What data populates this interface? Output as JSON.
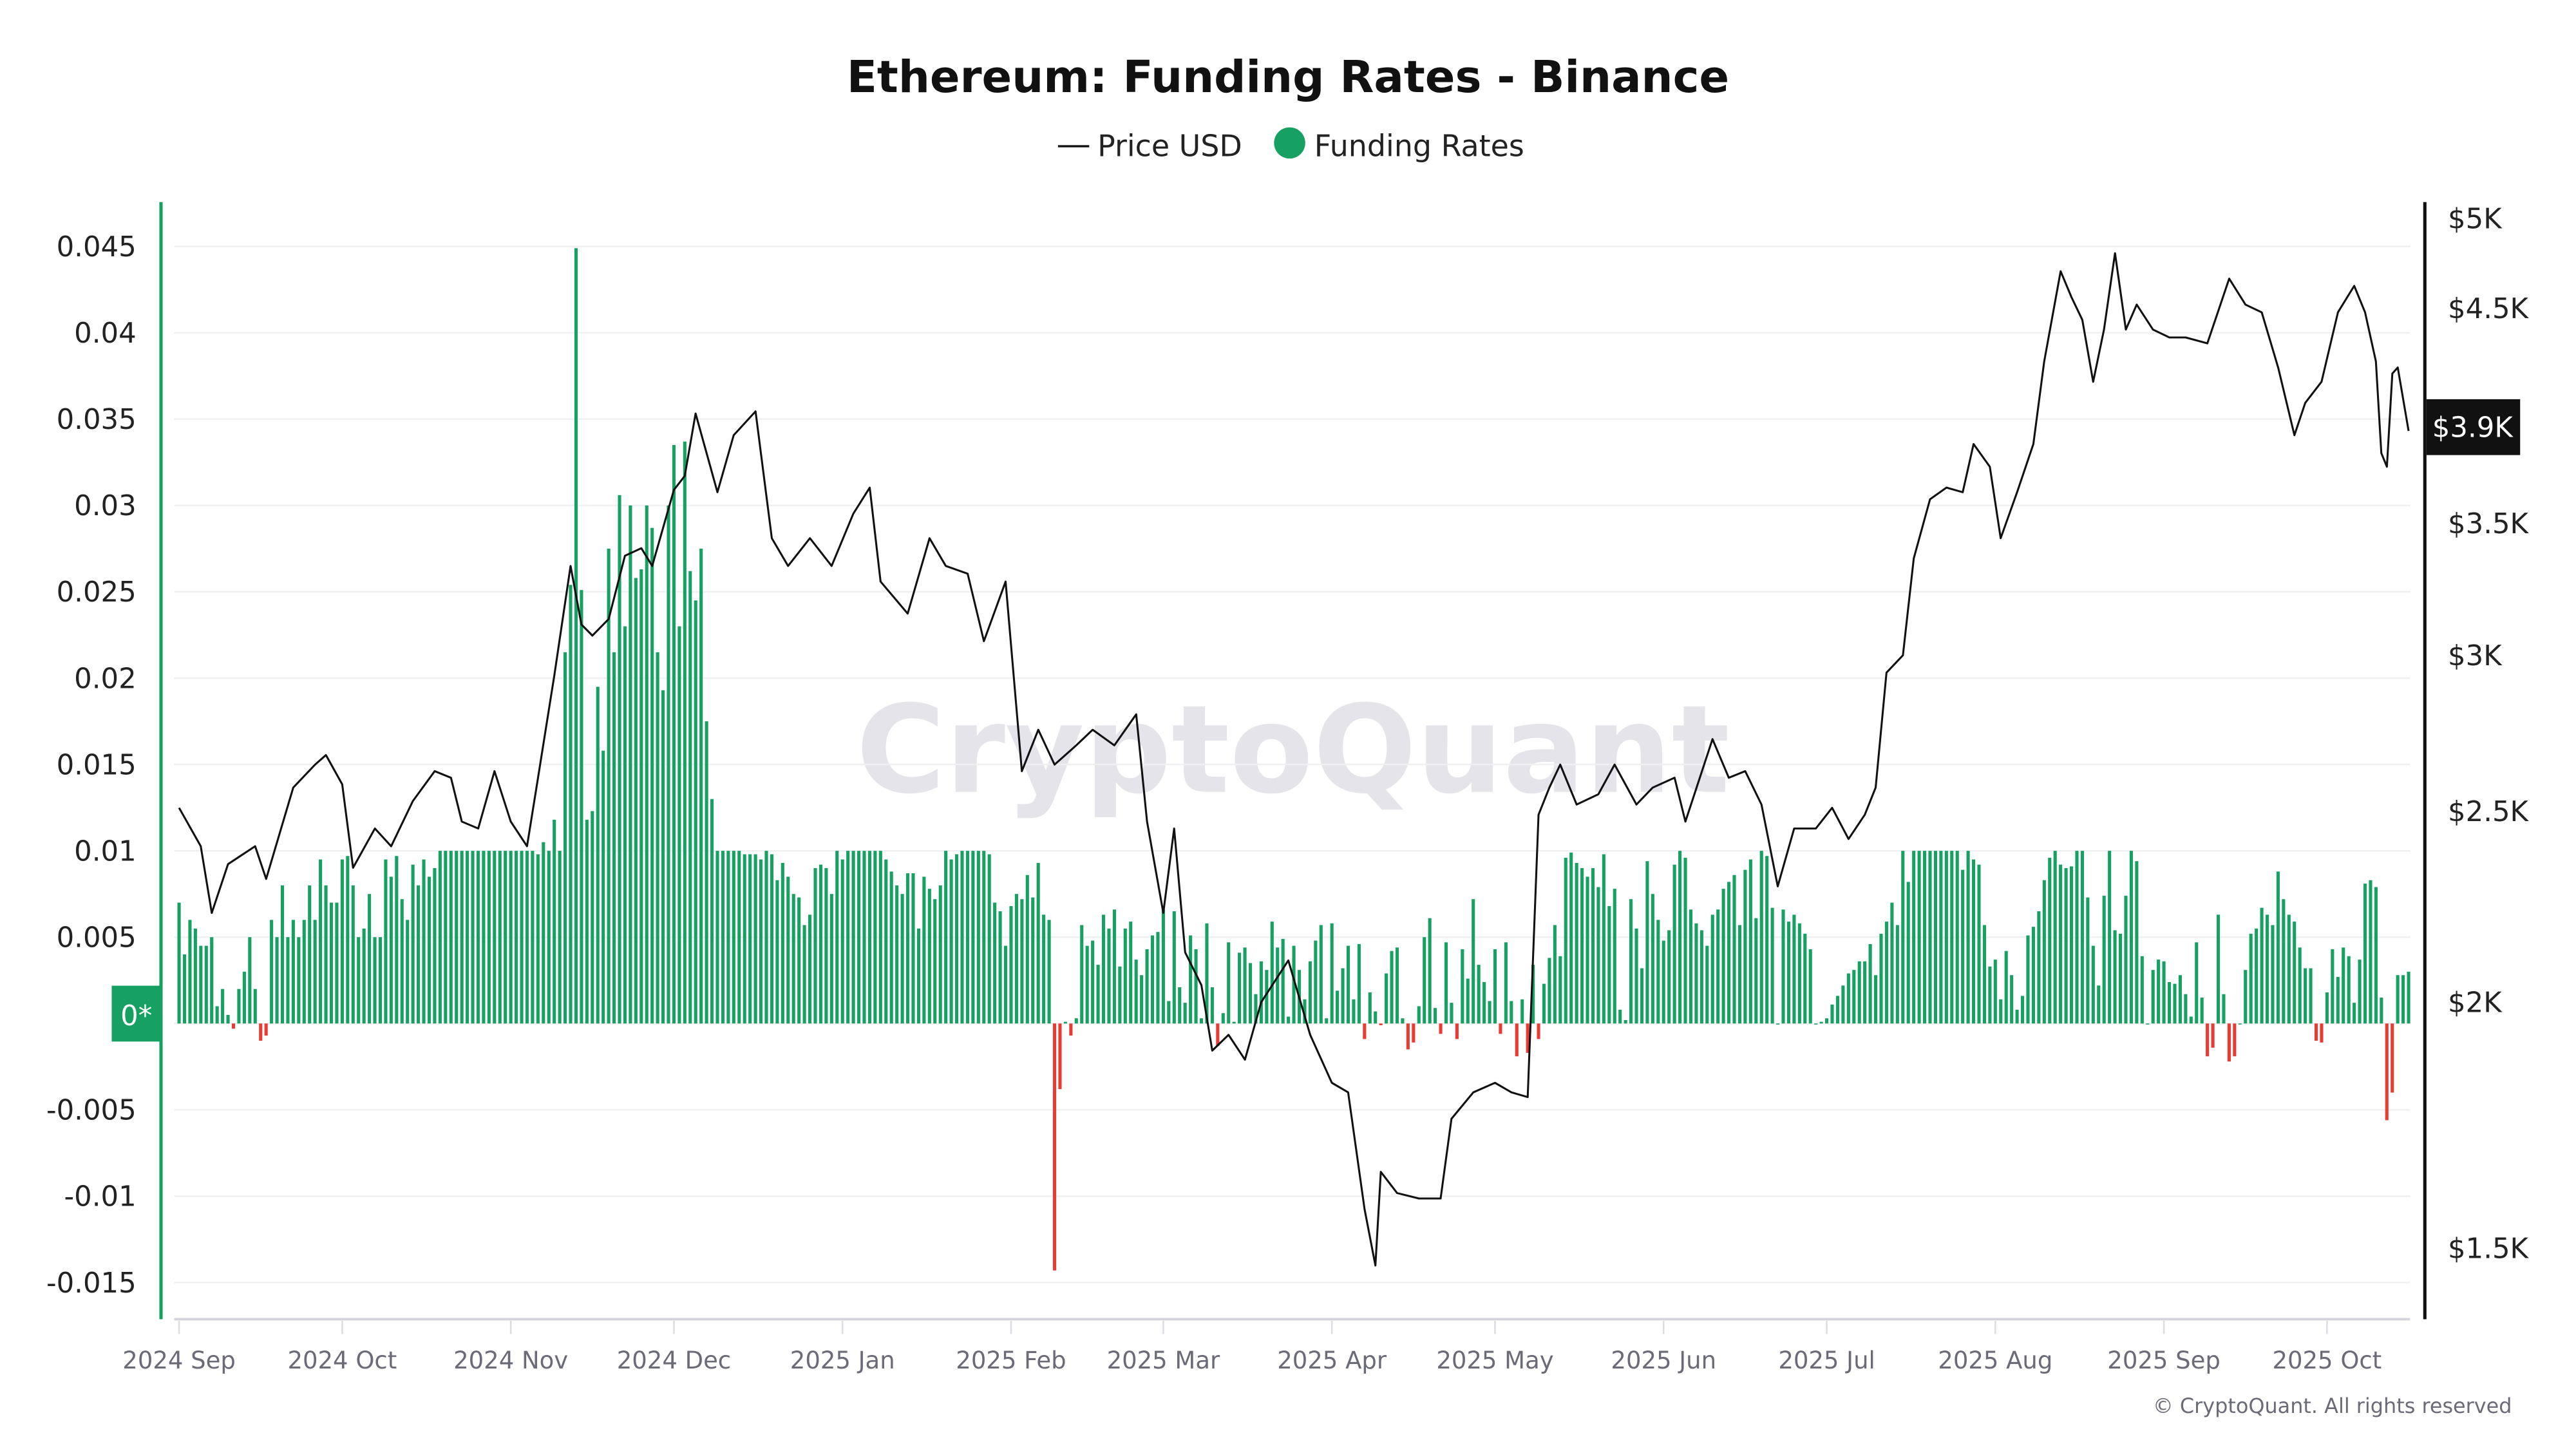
{
  "chart_data": {
    "type": "bar+line",
    "title": "Ethereum: Funding Rates - Binance",
    "legend": {
      "position": "top-center",
      "items": [
        {
          "label": "Price USD",
          "marker": "line",
          "color": "#111111"
        },
        {
          "label": "Funding Rates",
          "marker": "dot",
          "color": "#16a061"
        }
      ]
    },
    "watermark": "CryptoQuant",
    "copyright": "© CryptoQuant. All rights reserved",
    "colors": {
      "positive": "#16a061",
      "negative": "#ea3b32",
      "price": "#111111",
      "left_axis": "#16a061",
      "right_axis": "#111111"
    },
    "grid": true,
    "x_axis": {
      "ticks": [
        {
          "date": "2024-09-01",
          "label": "2024 Sep"
        },
        {
          "date": "2024-10-01",
          "label": "2024 Oct"
        },
        {
          "date": "2024-11-01",
          "label": "2024 Nov"
        },
        {
          "date": "2024-12-01",
          "label": "2024 Dec"
        },
        {
          "date": "2025-01-01",
          "label": "2025 Jan"
        },
        {
          "date": "2025-02-01",
          "label": "2025 Feb"
        },
        {
          "date": "2025-03-01",
          "label": "2025 Mar"
        },
        {
          "date": "2025-04-01",
          "label": "2025 Apr"
        },
        {
          "date": "2025-05-01",
          "label": "2025 May"
        },
        {
          "date": "2025-06-01",
          "label": "2025 Jun"
        },
        {
          "date": "2025-07-01",
          "label": "2025 Jul"
        },
        {
          "date": "2025-08-01",
          "label": "2025 Aug"
        },
        {
          "date": "2025-09-01",
          "label": "2025 Sep"
        },
        {
          "date": "2025-10-01",
          "label": "2025 Oct"
        }
      ]
    },
    "y_left": {
      "range": [
        -0.017,
        0.048
      ],
      "ticks": [
        {
          "value": 0.045,
          "label": "0.045"
        },
        {
          "value": 0.04,
          "label": "0.04"
        },
        {
          "value": 0.035,
          "label": "0.035"
        },
        {
          "value": 0.03,
          "label": "0.03"
        },
        {
          "value": 0.025,
          "label": "0.025"
        },
        {
          "value": 0.02,
          "label": "0.02"
        },
        {
          "value": 0.015,
          "label": "0.015"
        },
        {
          "value": 0.01,
          "label": "0.01"
        },
        {
          "value": 0.005,
          "label": "0.005"
        },
        {
          "value": -0.005,
          "label": "-0.005"
        },
        {
          "value": -0.01,
          "label": "-0.01"
        },
        {
          "value": -0.015,
          "label": "-0.015"
        }
      ],
      "zero_badge": "0*"
    },
    "y_right": {
      "scale": "log",
      "range": [
        1350,
        5200
      ],
      "ticks": [
        {
          "value": 5000,
          "label": "$5K"
        },
        {
          "value": 4500,
          "label": "$4.5K"
        },
        {
          "value": 3500,
          "label": "$3.5K"
        },
        {
          "value": 3000,
          "label": "$3K"
        },
        {
          "value": 2500,
          "label": "$2.5K"
        },
        {
          "value": 2000,
          "label": "$2K"
        },
        {
          "value": 1500,
          "label": "$1.5K"
        }
      ],
      "current_badge": {
        "value": 3900,
        "label": "$3.9K"
      }
    },
    "funding_rates": {
      "start": "2024-09-01",
      "daily": [
        0.007,
        0.004,
        0.006,
        0.0055,
        0.0045,
        0.0045,
        0.005,
        0.001,
        0.002,
        0.0005,
        -0.0003,
        0.002,
        0.003,
        0.005,
        0.002,
        -0.001,
        -0.0007,
        0.006,
        0.005,
        0.008,
        0.005,
        0.006,
        0.005,
        0.006,
        0.008,
        0.006,
        0.0095,
        0.008,
        0.007,
        0.007,
        0.0095,
        0.0097,
        0.008,
        0.005,
        0.0055,
        0.0075,
        0.005,
        0.005,
        0.0095,
        0.0085,
        0.0097,
        0.0072,
        0.006,
        0.0092,
        0.008,
        0.0095,
        0.0085,
        0.009,
        0.01,
        0.01,
        0.01,
        0.01,
        0.01,
        0.01,
        0.01,
        0.01,
        0.01,
        0.01,
        0.01,
        0.01,
        0.01,
        0.01,
        0.01,
        0.01,
        0.01,
        0.01,
        0.0098,
        0.0105,
        0.01,
        0.0118,
        0.01,
        0.0215,
        0.0254,
        0.0449,
        0.0251,
        0.0118,
        0.0123,
        0.0195,
        0.0158,
        0.0275,
        0.0215,
        0.0306,
        0.023,
        0.03,
        0.0258,
        0.0263,
        0.03,
        0.0287,
        0.0215,
        0.0193,
        0.03,
        0.0335,
        0.023,
        0.0337,
        0.0262,
        0.0245,
        0.0275,
        0.0175,
        0.013,
        0.01,
        0.01,
        0.01,
        0.01,
        0.01,
        0.0098,
        0.0098,
        0.0098,
        0.0095,
        0.01,
        0.0098,
        0.0083,
        0.0093,
        0.0085,
        0.0075,
        0.0073,
        0.0057,
        0.0063,
        0.009,
        0.0092,
        0.009,
        0.0075,
        0.01,
        0.0095,
        0.01,
        0.01,
        0.01,
        0.01,
        0.01,
        0.01,
        0.01,
        0.0095,
        0.0088,
        0.008,
        0.0075,
        0.0087,
        0.0087,
        0.0055,
        0.0085,
        0.0078,
        0.0072,
        0.008,
        0.01,
        0.0095,
        0.0098,
        0.01,
        0.01,
        0.01,
        0.01,
        0.01,
        0.0098,
        0.007,
        0.0065,
        0.0045,
        0.0068,
        0.0075,
        0.0072,
        0.0086,
        0.0073,
        0.0093,
        0.0063,
        0.006,
        -0.0143,
        -0.0038,
        0.0001,
        -0.0007,
        0.0003,
        0.0057,
        0.0045,
        0.0048,
        0.0034,
        0.0063,
        0.0055,
        0.0066,
        0.0033,
        0.0055,
        0.0059,
        0.0037,
        0.0028,
        0.0043,
        0.0051,
        0.0053,
        0.0066,
        0.0013,
        0.0065,
        0.0021,
        0.0012,
        0.0051,
        0.0043,
        0.0003,
        0.0058,
        0.0021,
        -0.0013,
        0.0006,
        0.0047,
        0.0001,
        0.0041,
        0.0044,
        0.0035,
        0.0017,
        0.0036,
        0.0031,
        0.0059,
        0.0044,
        0.0049,
        0.0004,
        0.0045,
        0.0031,
        0.0014,
        0.0036,
        0.0048,
        0.0057,
        0.0003,
        0.0058,
        0.0019,
        0.0032,
        0.0045,
        0.0014,
        0.0046,
        -0.0009,
        0.0018,
        0.0007,
        -0.0001,
        0.0029,
        0.0042,
        0.0044,
        0.0003,
        -0.0015,
        -0.0011,
        0.001,
        0.005,
        0.0061,
        0.0009,
        -0.0006,
        0.0047,
        0.0012,
        -0.0009,
        0.0043,
        0.0026,
        0.0072,
        0.0034,
        0.0024,
        0.0013,
        0.0043,
        -0.0006,
        0.0047,
        0.0013,
        -0.0019,
        0.0014,
        -0.0017,
        0.0034,
        -0.0009,
        0.0023,
        0.0038,
        0.0057,
        0.0039,
        0.0096,
        0.0099,
        0.0093,
        0.009,
        0.0085,
        0.009,
        0.0079,
        0.0098,
        0.0068,
        0.0078,
        0.0008,
        0.0002,
        0.0072,
        0.0055,
        0.0032,
        0.0094,
        0.0075,
        0.006,
        0.0048,
        0.0054,
        0.0092,
        0.01,
        0.0096,
        0.0066,
        0.0058,
        0.0054,
        0.0045,
        0.0063,
        0.0066,
        0.0078,
        0.0082,
        0.0086,
        0.0057,
        0.0089,
        0.0095,
        0.0061,
        0.01,
        0.0097,
        0.0067,
        0.0,
        0.0066,
        0.0059,
        0.0063,
        0.0058,
        0.0052,
        0.0043,
        0.0,
        0.0001,
        0.0003,
        0.0011,
        0.0016,
        0.0022,
        0.0029,
        0.0031,
        0.0036,
        0.0036,
        0.0046,
        0.0028,
        0.0052,
        0.0059,
        0.007,
        0.0057,
        0.01,
        0.0082,
        0.01,
        0.01,
        0.01,
        0.01,
        0.01,
        0.01,
        0.01,
        0.01,
        0.01,
        0.0089,
        0.01,
        0.0095,
        0.0092,
        0.0057,
        0.0033,
        0.0037,
        0.0014,
        0.0042,
        0.0028,
        0.0008,
        0.0016,
        0.0051,
        0.0056,
        0.0065,
        0.0083,
        0.0096,
        0.01,
        0.0092,
        0.009,
        0.0091,
        0.01,
        0.01,
        0.0073,
        0.0045,
        0.0022,
        0.0074,
        0.01,
        0.0054,
        0.0052,
        0.0074,
        0.01,
        0.0094,
        0.0039,
        0.0,
        0.0031,
        0.0037,
        0.0036,
        0.0024,
        0.0023,
        0.0028,
        0.0017,
        0.0004,
        0.0047,
        0.0015,
        -0.0019,
        -0.0014,
        0.0063,
        0.0017,
        -0.0022,
        -0.0019,
        0.0,
        0.0031,
        0.0052,
        0.0055,
        0.0067,
        0.0063,
        0.0057,
        0.0088,
        0.0072,
        0.0063,
        0.0059,
        0.0044,
        0.0032,
        0.0032,
        -0.001,
        -0.0011,
        0.0018,
        0.0043,
        0.0027,
        0.0044,
        0.0039,
        0.0012,
        0.0037,
        0.0081,
        0.0083,
        0.0079,
        0.0015,
        -0.0056,
        -0.004,
        0.0028,
        0.0028,
        0.003
      ]
    },
    "price_usd": [
      [
        "2024-09-01",
        2510
      ],
      [
        "2024-09-05",
        2400
      ],
      [
        "2024-09-07",
        2220
      ],
      [
        "2024-09-10",
        2350
      ],
      [
        "2024-09-15",
        2400
      ],
      [
        "2024-09-17",
        2310
      ],
      [
        "2024-09-22",
        2570
      ],
      [
        "2024-09-26",
        2640
      ],
      [
        "2024-09-28",
        2670
      ],
      [
        "2024-10-01",
        2580
      ],
      [
        "2024-10-03",
        2340
      ],
      [
        "2024-10-07",
        2450
      ],
      [
        "2024-10-10",
        2400
      ],
      [
        "2024-10-14",
        2530
      ],
      [
        "2024-10-18",
        2620
      ],
      [
        "2024-10-21",
        2600
      ],
      [
        "2024-10-23",
        2470
      ],
      [
        "2024-10-26",
        2450
      ],
      [
        "2024-10-29",
        2620
      ],
      [
        "2024-11-01",
        2470
      ],
      [
        "2024-11-04",
        2400
      ],
      [
        "2024-11-06",
        2600
      ],
      [
        "2024-11-09",
        2930
      ],
      [
        "2024-11-12",
        3330
      ],
      [
        "2024-11-14",
        3110
      ],
      [
        "2024-11-16",
        3070
      ],
      [
        "2024-11-19",
        3130
      ],
      [
        "2024-11-22",
        3370
      ],
      [
        "2024-11-25",
        3400
      ],
      [
        "2024-11-27",
        3330
      ],
      [
        "2024-12-01",
        3640
      ],
      [
        "2024-12-03",
        3700
      ],
      [
        "2024-12-05",
        3980
      ],
      [
        "2024-12-09",
        3630
      ],
      [
        "2024-12-12",
        3880
      ],
      [
        "2024-12-16",
        3990
      ],
      [
        "2024-12-19",
        3440
      ],
      [
        "2024-12-22",
        3330
      ],
      [
        "2024-12-26",
        3440
      ],
      [
        "2024-12-30",
        3330
      ],
      [
        "2025-01-03",
        3540
      ],
      [
        "2025-01-06",
        3650
      ],
      [
        "2025-01-08",
        3270
      ],
      [
        "2025-01-13",
        3150
      ],
      [
        "2025-01-17",
        3440
      ],
      [
        "2025-01-20",
        3330
      ],
      [
        "2025-01-24",
        3300
      ],
      [
        "2025-01-27",
        3050
      ],
      [
        "2025-01-31",
        3270
      ],
      [
        "2025-02-03",
        2620
      ],
      [
        "2025-02-06",
        2750
      ],
      [
        "2025-02-09",
        2640
      ],
      [
        "2025-02-13",
        2700
      ],
      [
        "2025-02-16",
        2750
      ],
      [
        "2025-02-20",
        2700
      ],
      [
        "2025-02-24",
        2800
      ],
      [
        "2025-02-26",
        2470
      ],
      [
        "2025-03-01",
        2220
      ],
      [
        "2025-03-03",
        2450
      ],
      [
        "2025-03-05",
        2120
      ],
      [
        "2025-03-08",
        2040
      ],
      [
        "2025-03-10",
        1890
      ],
      [
        "2025-03-13",
        1925
      ],
      [
        "2025-03-16",
        1870
      ],
      [
        "2025-03-19",
        2000
      ],
      [
        "2025-03-24",
        2100
      ],
      [
        "2025-03-28",
        1925
      ],
      [
        "2025-04-01",
        1820
      ],
      [
        "2025-04-04",
        1800
      ],
      [
        "2025-04-07",
        1570
      ],
      [
        "2025-04-09",
        1470
      ],
      [
        "2025-04-10",
        1640
      ],
      [
        "2025-04-13",
        1600
      ],
      [
        "2025-04-17",
        1590
      ],
      [
        "2025-04-21",
        1590
      ],
      [
        "2025-04-23",
        1745
      ],
      [
        "2025-04-27",
        1800
      ],
      [
        "2025-05-01",
        1820
      ],
      [
        "2025-05-04",
        1800
      ],
      [
        "2025-05-07",
        1790
      ],
      [
        "2025-05-09",
        2490
      ],
      [
        "2025-05-11",
        2570
      ],
      [
        "2025-05-13",
        2640
      ],
      [
        "2025-05-16",
        2520
      ],
      [
        "2025-05-20",
        2550
      ],
      [
        "2025-05-23",
        2640
      ],
      [
        "2025-05-27",
        2520
      ],
      [
        "2025-05-30",
        2570
      ],
      [
        "2025-06-03",
        2600
      ],
      [
        "2025-06-05",
        2470
      ],
      [
        "2025-06-10",
        2720
      ],
      [
        "2025-06-13",
        2600
      ],
      [
        "2025-06-16",
        2620
      ],
      [
        "2025-06-19",
        2520
      ],
      [
        "2025-06-22",
        2290
      ],
      [
        "2025-06-25",
        2450
      ],
      [
        "2025-06-29",
        2450
      ],
      [
        "2025-07-02",
        2510
      ],
      [
        "2025-07-05",
        2420
      ],
      [
        "2025-07-08",
        2490
      ],
      [
        "2025-07-10",
        2570
      ],
      [
        "2025-07-12",
        2940
      ],
      [
        "2025-07-15",
        3000
      ],
      [
        "2025-07-17",
        3360
      ],
      [
        "2025-07-20",
        3600
      ],
      [
        "2025-07-23",
        3650
      ],
      [
        "2025-07-26",
        3630
      ],
      [
        "2025-07-28",
        3840
      ],
      [
        "2025-07-31",
        3740
      ],
      [
        "2025-08-02",
        3440
      ],
      [
        "2025-08-05",
        3630
      ],
      [
        "2025-08-08",
        3840
      ],
      [
        "2025-08-10",
        4230
      ],
      [
        "2025-08-13",
        4700
      ],
      [
        "2025-08-15",
        4560
      ],
      [
        "2025-08-17",
        4440
      ],
      [
        "2025-08-19",
        4130
      ],
      [
        "2025-08-21",
        4390
      ],
      [
        "2025-08-23",
        4800
      ],
      [
        "2025-08-25",
        4390
      ],
      [
        "2025-08-27",
        4520
      ],
      [
        "2025-08-30",
        4390
      ],
      [
        "2025-09-02",
        4350
      ],
      [
        "2025-09-05",
        4350
      ],
      [
        "2025-09-09",
        4320
      ],
      [
        "2025-09-13",
        4660
      ],
      [
        "2025-09-16",
        4520
      ],
      [
        "2025-09-19",
        4480
      ],
      [
        "2025-09-22",
        4200
      ],
      [
        "2025-09-25",
        3880
      ],
      [
        "2025-09-27",
        4030
      ],
      [
        "2025-09-30",
        4130
      ],
      [
        "2025-10-03",
        4480
      ],
      [
        "2025-10-06",
        4620
      ],
      [
        "2025-10-08",
        4480
      ],
      [
        "2025-10-10",
        4230
      ],
      [
        "2025-10-11",
        3800
      ],
      [
        "2025-10-12",
        3740
      ],
      [
        "2025-10-13",
        4170
      ],
      [
        "2025-10-14",
        4200
      ],
      [
        "2025-10-16",
        3900
      ]
    ]
  }
}
